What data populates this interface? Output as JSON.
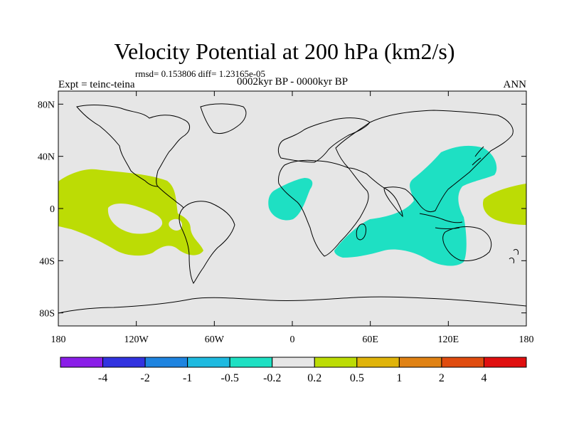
{
  "title": "Velocity Potential at 200 hPa (km2/s)",
  "stats": "rmsd= 0.153806 diff= 1.23165e-05",
  "experiment": "Expt = teinc-teina",
  "period": "0002kyr BP - 0000kyr BP",
  "season": "ANN",
  "map": {
    "lon_range": [
      -180,
      180
    ],
    "lat_range": [
      -90,
      90
    ],
    "background_color": "#e6e6e6",
    "y_ticks": [
      {
        "lat": 80,
        "label": "80N"
      },
      {
        "lat": 40,
        "label": "40N"
      },
      {
        "lat": 0,
        "label": "0"
      },
      {
        "lat": -40,
        "label": "40S"
      },
      {
        "lat": -80,
        "label": "80S"
      }
    ],
    "x_ticks": [
      {
        "lon": -180,
        "label": "180"
      },
      {
        "lon": -120,
        "label": "120W"
      },
      {
        "lon": -60,
        "label": "60W"
      },
      {
        "lon": 0,
        "label": "0"
      },
      {
        "lon": 60,
        "label": "60E"
      },
      {
        "lon": 120,
        "label": "120E"
      },
      {
        "lon": 180,
        "label": "180"
      }
    ],
    "positive_color": "#bcdc05",
    "negative_color": "#1ee0c3",
    "positive_anomaly_bin": "0.2 to 0.5",
    "negative_anomaly_bin": "-0.5 to -0.2"
  },
  "colorbar": {
    "colors": [
      "#8a1ee8",
      "#3233e0",
      "#1e84e0",
      "#1ebae0",
      "#1ee0c3",
      "#e6e6e6",
      "#bcdc05",
      "#e0b40a",
      "#e08214",
      "#e04c0f",
      "#e00f0f"
    ],
    "labels": [
      "-4",
      "-2",
      "-1",
      "-0.5",
      "-0.2",
      "0.2",
      "0.5",
      "1",
      "2",
      "4"
    ]
  }
}
